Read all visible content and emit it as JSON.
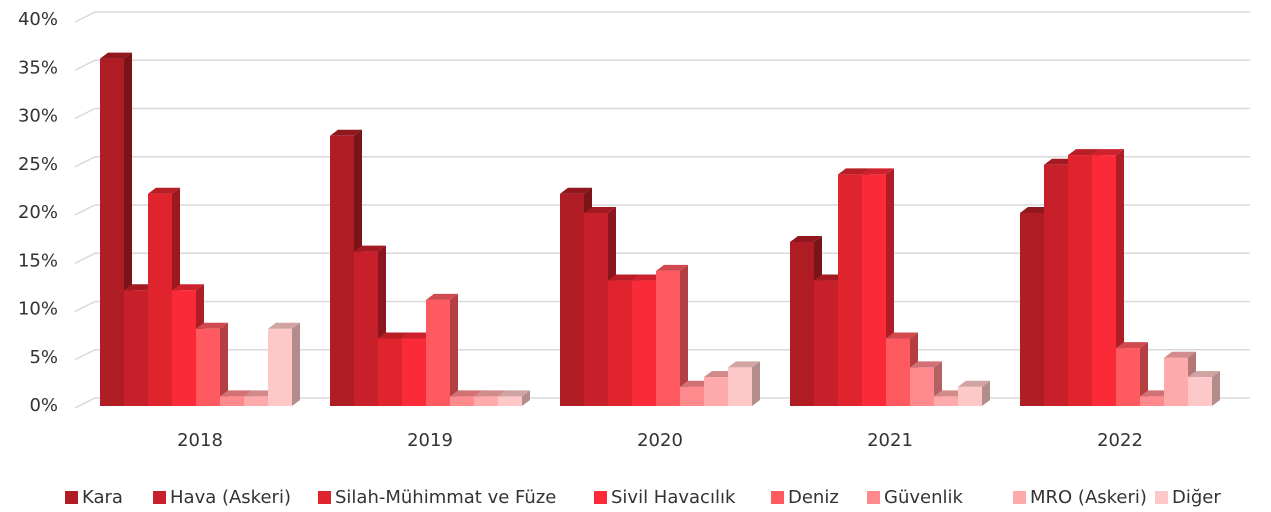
{
  "chart_data": {
    "type": "bar3d",
    "categories": [
      "2018",
      "2019",
      "2020",
      "2021",
      "2022"
    ],
    "series": [
      {
        "name": "Kara",
        "color": "#b01c24",
        "values": [
          36,
          28,
          22,
          17,
          20
        ]
      },
      {
        "name": "Hava (Askeri)",
        "color": "#c8202a",
        "values": [
          12,
          16,
          20,
          13,
          25
        ]
      },
      {
        "name": "Silah-Mühimmat ve Füze",
        "color": "#e0242e",
        "values": [
          22,
          7,
          13,
          24,
          26
        ]
      },
      {
        "name": "Sivil Havacılık",
        "color": "#fa2a38",
        "values": [
          12,
          7,
          13,
          24,
          26
        ]
      },
      {
        "name": "Deniz",
        "color": "#ff5a60",
        "values": [
          8,
          11,
          14,
          7,
          6
        ]
      },
      {
        "name": "Güvenlik",
        "color": "#ff8a8e",
        "values": [
          1,
          1,
          2,
          4,
          1
        ]
      },
      {
        "name": "MRO (Askeri)",
        "color": "#ffaaaa",
        "values": [
          1,
          1,
          3,
          1,
          5
        ]
      },
      {
        "name": "Diğer",
        "color": "#ffc8c8",
        "values": [
          8,
          1,
          4,
          2,
          3
        ]
      }
    ],
    "ylim": [
      0,
      40
    ],
    "yticks": [
      {
        "value": 0,
        "label": "0%"
      },
      {
        "value": 5,
        "label": "5%"
      },
      {
        "value": 10,
        "label": "10%"
      },
      {
        "value": 15,
        "label": "15%"
      },
      {
        "value": 20,
        "label": "20%"
      },
      {
        "value": 25,
        "label": "25%"
      },
      {
        "value": 30,
        "label": "30%"
      },
      {
        "value": 35,
        "label": "35%"
      },
      {
        "value": 40,
        "label": "40%"
      }
    ],
    "grid": true
  }
}
